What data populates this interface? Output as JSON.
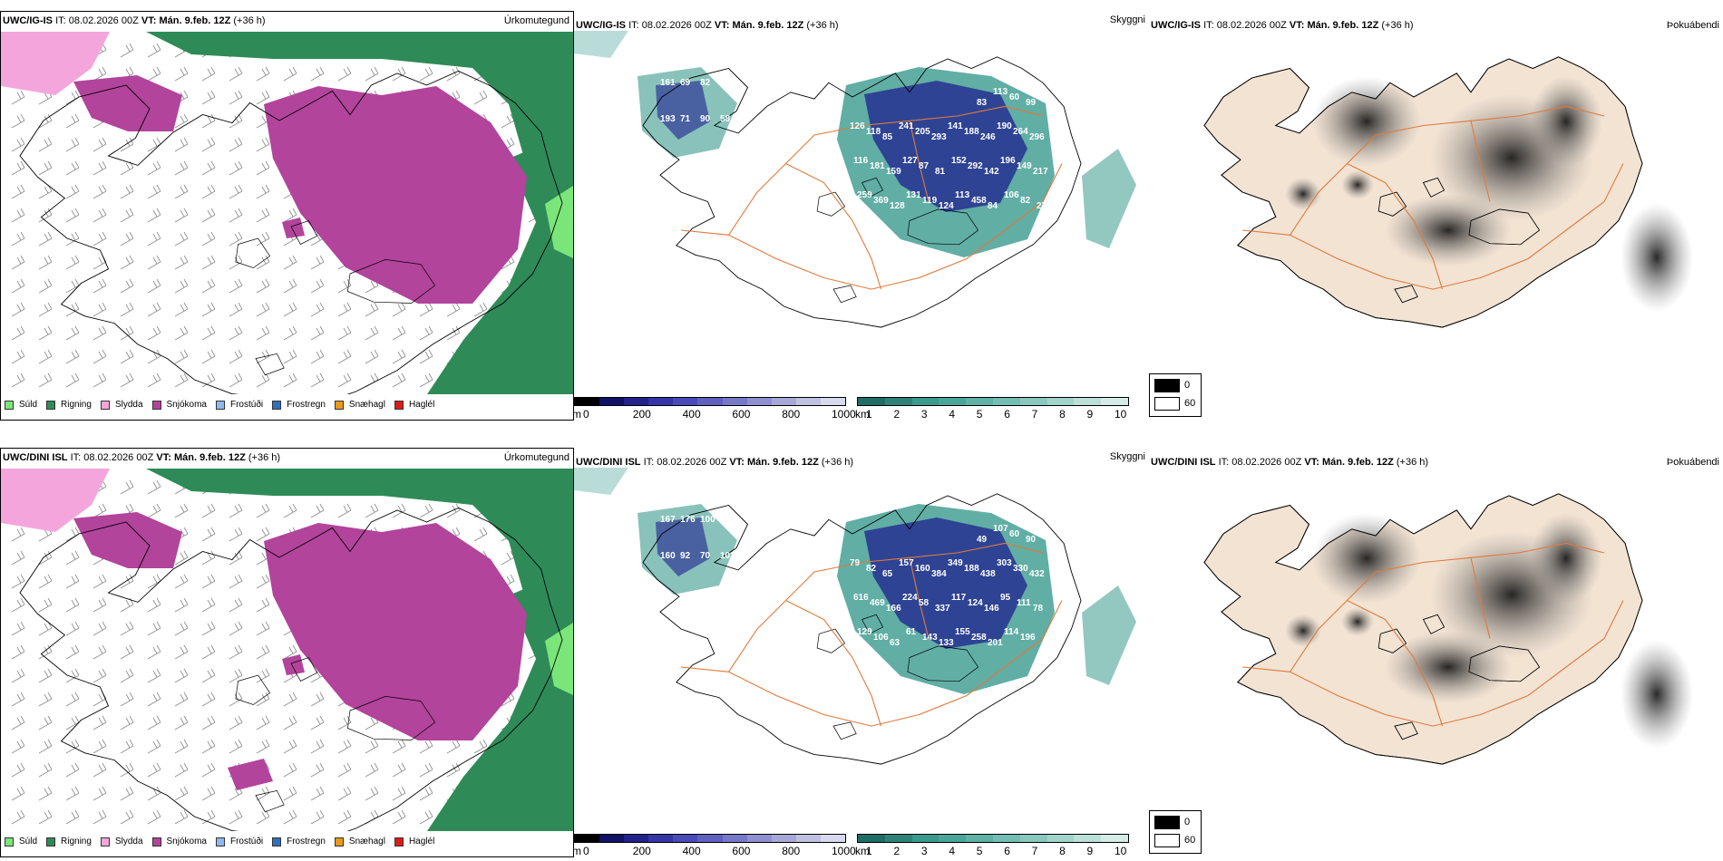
{
  "colors": {
    "sea": "#ffffff",
    "land": "#f2e3d3",
    "coast": "#000000",
    "road": "#e07a3c",
    "green": "#2e8b57",
    "lightgreen": "#7ae67a",
    "pink": "#f4a6dc",
    "magenta": "#b2449c",
    "teal": "#3a9a8e",
    "navy": "#1f1f8f"
  },
  "rows": [
    {
      "model": "UWC/IG-IS",
      "it_label": "IT:",
      "it_value": "08.02.2026 00Z",
      "vt_label": "VT:",
      "vt_value": "Mán. 9.feb. 12Z",
      "lead": "(+36 h)"
    },
    {
      "model": "UWC/DINI ISL",
      "it_label": "IT:",
      "it_value": "08.02.2026 00Z",
      "vt_label": "VT:",
      "vt_value": "Mán. 9.feb. 12Z",
      "lead": "(+36 h)"
    }
  ],
  "panel_names": {
    "precip": "Úrkomutegund",
    "visibility": "Skyggni",
    "fog": "Þokuábendi"
  },
  "precip_legend": [
    {
      "label": "Súld",
      "color": "#7ae67a"
    },
    {
      "label": "Rigning",
      "color": "#2e8b57"
    },
    {
      "label": "Slydda",
      "color": "#f4a6dc"
    },
    {
      "label": "Snjókoma",
      "color": "#b2449c"
    },
    {
      "label": "Frostúði",
      "color": "#8fb8ee"
    },
    {
      "label": "Frostregn",
      "color": "#2f6fc0"
    },
    {
      "label": "Snæhagl",
      "color": "#e89a1a"
    },
    {
      "label": "Haglél",
      "color": "#e01a1a"
    }
  ],
  "visibility_m_scale": {
    "unit": "m",
    "ticks": [
      "0",
      "200",
      "400",
      "600",
      "800",
      "1000"
    ],
    "colors": [
      "#000000",
      "#111166",
      "#22228a",
      "#3535a8",
      "#4a4ab8",
      "#6060c0",
      "#7878c8",
      "#9090d0",
      "#a8a8d8",
      "#c0c0e0",
      "#d8d8ee"
    ]
  },
  "visibility_km_scale": {
    "unit": "km",
    "ticks": [
      "1",
      "2",
      "3",
      "4",
      "5",
      "6",
      "7",
      "8",
      "9",
      "10"
    ],
    "colors": [
      "#1e6e66",
      "#2f8278",
      "#3a9a8e",
      "#4aa69a",
      "#5eb2a6",
      "#74bdb2",
      "#8ac8be",
      "#a2d4cb",
      "#bbe0d8",
      "#d4ece6"
    ]
  },
  "fog_legend": {
    "high": "0",
    "low": "60"
  },
  "vis_labels": [
    [
      "161",
      "69",
      "82",
      "72",
      "193",
      "71",
      "90",
      "58",
      "83",
      "113",
      "60",
      "99",
      "126",
      "118",
      "85",
      "241",
      "205",
      "293",
      "141",
      "188",
      "246",
      "190",
      "264",
      "296",
      "116",
      "181",
      "159",
      "127",
      "87",
      "81",
      "152",
      "292",
      "142",
      "196",
      "149",
      "217",
      "259",
      "369",
      "128",
      "131",
      "119",
      "124",
      "113",
      "458",
      "84",
      "106",
      "82",
      "27"
    ],
    [
      "167",
      "176",
      "100",
      "176",
      "160",
      "92",
      "70",
      "102",
      "49",
      "107",
      "60",
      "90",
      "79",
      "82",
      "65",
      "157",
      "160",
      "384",
      "349",
      "188",
      "438",
      "303",
      "330",
      "432",
      "616",
      "469",
      "166",
      "224",
      "58",
      "337",
      "117",
      "124",
      "146",
      "95",
      "111",
      "78",
      "129",
      "106",
      "63",
      "61",
      "143",
      "133",
      "155",
      "258",
      "201",
      "114",
      "196"
    ]
  ]
}
